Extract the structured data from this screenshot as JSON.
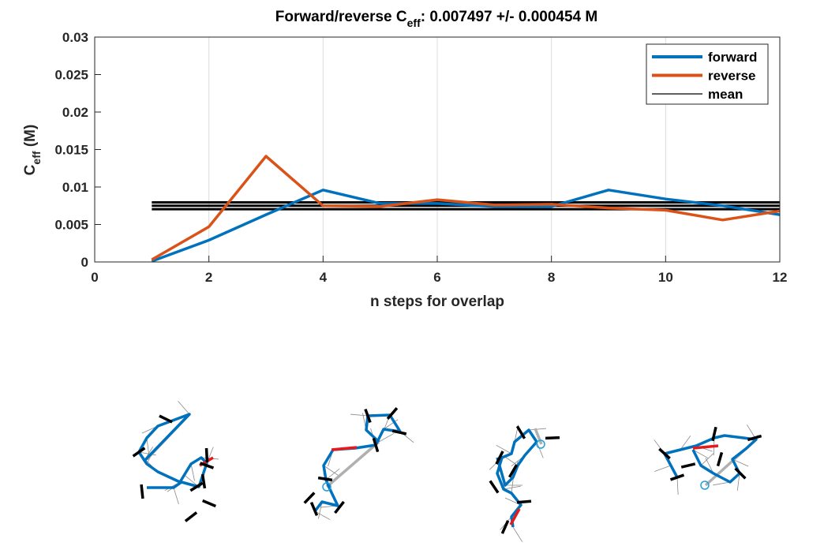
{
  "chart_data": {
    "type": "line",
    "title": {
      "prefix": "Forward/reverse C",
      "sub": "eff",
      "suffix": ": 0.007497 +/- 0.000454 M"
    },
    "xlabel": "n steps for overlap",
    "ylabel": {
      "main": "C",
      "sub": "eff",
      "suffix": " (M)"
    },
    "xlim": [
      0,
      12
    ],
    "ylim": [
      0,
      0.03
    ],
    "xticks": [
      0,
      2,
      4,
      6,
      8,
      10,
      12
    ],
    "xtick_labels": [
      "0",
      "2",
      "4",
      "6",
      "8",
      "10",
      "12"
    ],
    "yticks": [
      0,
      0.005,
      0.01,
      0.015,
      0.02,
      0.025,
      0.03
    ],
    "ytick_labels": [
      "0",
      "0.005",
      "0.01",
      "0.015",
      "0.02",
      "0.025",
      "0.03"
    ],
    "grid": "x",
    "legend_position": "top-right",
    "series": [
      {
        "name": "forward",
        "color": "#0072BD",
        "x": [
          1,
          2,
          3,
          4,
          5,
          6,
          7,
          8,
          9,
          10,
          11,
          12
        ],
        "y": [
          0.0001,
          0.0029,
          0.0063,
          0.0096,
          0.0078,
          0.0078,
          0.0074,
          0.0074,
          0.0096,
          0.0084,
          0.0075,
          0.0063
        ]
      },
      {
        "name": "reverse",
        "color": "#D95319",
        "x": [
          1,
          2,
          3,
          4,
          5,
          6,
          7,
          8,
          9,
          10,
          11,
          12
        ],
        "y": [
          0.0003,
          0.0047,
          0.0141,
          0.0075,
          0.0074,
          0.0083,
          0.0076,
          0.0077,
          0.0072,
          0.0069,
          0.0056,
          0.0068
        ]
      }
    ],
    "mean_lines": {
      "name": "mean",
      "color": "#000000",
      "x_range": [
        1,
        12
      ],
      "y": [
        0.007043,
        0.007497,
        0.007951
      ]
    }
  },
  "structures_panel": {
    "count": 4,
    "colors": {
      "backbone": "#0072BD",
      "highlight": "#E41A1C",
      "connector": "#B0B0B0",
      "base": "#000000",
      "thin": "#888888",
      "end_marker": "#1EA0D8"
    }
  }
}
